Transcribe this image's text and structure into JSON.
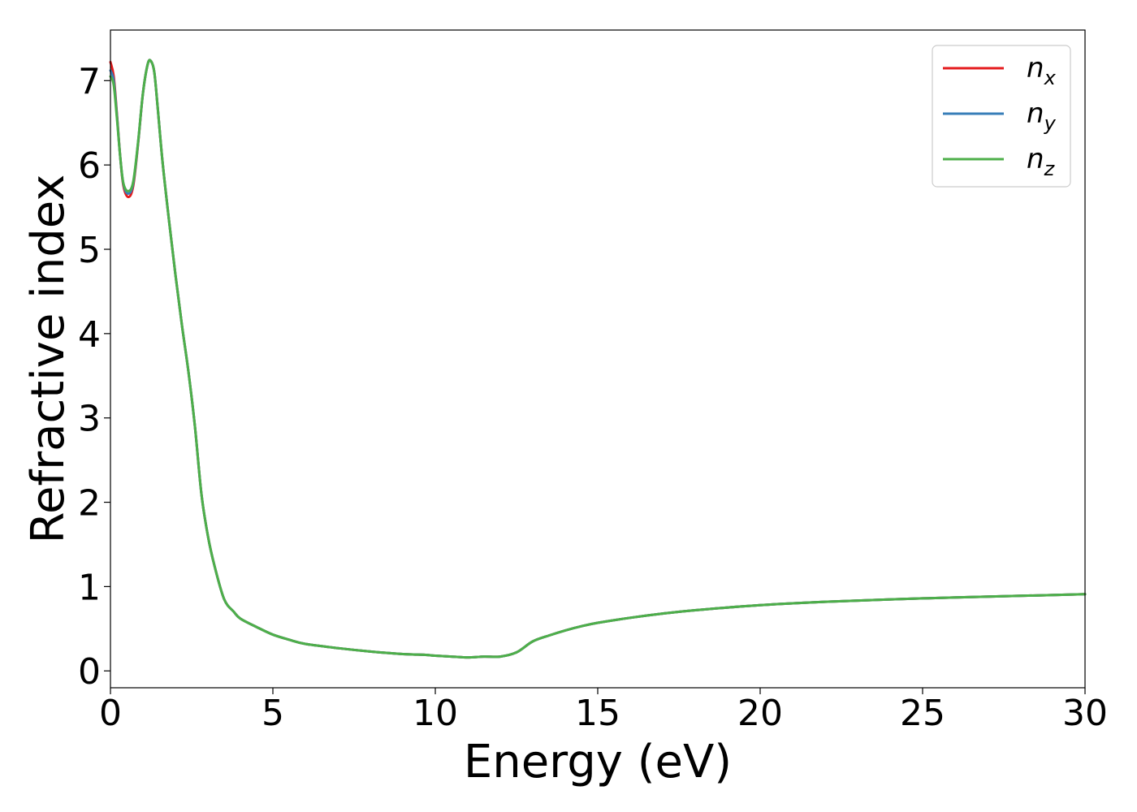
{
  "chart_data": {
    "type": "line",
    "xlabel": "Energy (eV)",
    "ylabel": "Refractive index",
    "xlim": [
      0,
      30
    ],
    "ylim": [
      -0.2,
      7.6
    ],
    "xticks": [
      "0",
      "5",
      "10",
      "15",
      "20",
      "25",
      "30"
    ],
    "yticks": [
      "0",
      "1",
      "2",
      "3",
      "4",
      "5",
      "6",
      "7"
    ],
    "grid": false,
    "legend_position": "top-right",
    "series": [
      {
        "base": "n",
        "sub": "x",
        "color": "#e41a1c",
        "x": [
          0,
          0.1,
          0.2,
          0.3,
          0.4,
          0.55,
          0.7,
          0.85,
          1.0,
          1.15,
          1.25,
          1.35,
          1.45,
          1.6,
          1.8,
          2.0,
          2.2,
          2.4,
          2.6,
          2.8,
          3.0,
          3.2,
          3.5,
          3.8,
          4.0,
          4.5,
          5.0,
          5.5,
          6.0,
          7.0,
          8.0,
          9.0,
          9.7,
          10.0,
          10.5,
          11.0,
          11.5,
          12.0,
          12.5,
          13.0,
          13.5,
          14.0,
          14.5,
          15.0,
          16.0,
          17.0,
          18.0,
          20.0,
          22.0,
          25.0,
          28.0,
          30.0
        ],
        "y": [
          7.22,
          7.05,
          6.6,
          6.1,
          5.75,
          5.62,
          5.75,
          6.25,
          6.85,
          7.2,
          7.23,
          7.1,
          6.7,
          6.05,
          5.35,
          4.7,
          4.1,
          3.55,
          2.9,
          2.1,
          1.6,
          1.25,
          0.85,
          0.7,
          0.62,
          0.52,
          0.43,
          0.37,
          0.32,
          0.27,
          0.23,
          0.2,
          0.19,
          0.18,
          0.17,
          0.16,
          0.17,
          0.17,
          0.22,
          0.35,
          0.42,
          0.48,
          0.53,
          0.57,
          0.63,
          0.68,
          0.72,
          0.78,
          0.82,
          0.86,
          0.89,
          0.91
        ]
      },
      {
        "base": "n",
        "sub": "y",
        "color": "#377eb8",
        "x": [
          0,
          0.1,
          0.2,
          0.3,
          0.4,
          0.55,
          0.7,
          0.85,
          1.0,
          1.15,
          1.25,
          1.35,
          1.45,
          1.6,
          1.8,
          2.0,
          2.2,
          2.4,
          2.6,
          2.8,
          3.0,
          3.2,
          3.5,
          3.8,
          4.0,
          4.5,
          5.0,
          5.5,
          6.0,
          7.0,
          8.0,
          9.0,
          9.7,
          10.0,
          10.5,
          11.0,
          11.5,
          12.0,
          12.5,
          13.0,
          13.5,
          14.0,
          14.5,
          15.0,
          16.0,
          17.0,
          18.0,
          20.0,
          22.0,
          25.0,
          28.0,
          30.0
        ],
        "y": [
          7.12,
          7.0,
          6.58,
          6.1,
          5.77,
          5.66,
          5.78,
          6.26,
          6.85,
          7.2,
          7.23,
          7.1,
          6.7,
          6.05,
          5.35,
          4.7,
          4.1,
          3.55,
          2.9,
          2.1,
          1.6,
          1.25,
          0.85,
          0.7,
          0.62,
          0.52,
          0.43,
          0.37,
          0.32,
          0.27,
          0.23,
          0.2,
          0.19,
          0.18,
          0.17,
          0.16,
          0.17,
          0.17,
          0.22,
          0.35,
          0.42,
          0.48,
          0.53,
          0.57,
          0.63,
          0.68,
          0.72,
          0.78,
          0.82,
          0.86,
          0.89,
          0.91
        ]
      },
      {
        "base": "n",
        "sub": "z",
        "color": "#4daf4a",
        "x": [
          0,
          0.1,
          0.2,
          0.3,
          0.4,
          0.55,
          0.7,
          0.85,
          1.0,
          1.15,
          1.25,
          1.35,
          1.45,
          1.6,
          1.8,
          2.0,
          2.2,
          2.4,
          2.6,
          2.8,
          3.0,
          3.2,
          3.5,
          3.8,
          4.0,
          4.5,
          5.0,
          5.5,
          6.0,
          7.0,
          8.0,
          9.0,
          9.7,
          10.0,
          10.5,
          11.0,
          11.5,
          12.0,
          12.5,
          13.0,
          13.5,
          14.0,
          14.5,
          15.0,
          16.0,
          17.0,
          18.0,
          20.0,
          22.0,
          25.0,
          28.0,
          30.0
        ],
        "y": [
          7.05,
          6.95,
          6.55,
          6.1,
          5.78,
          5.69,
          5.8,
          6.27,
          6.85,
          7.2,
          7.23,
          7.1,
          6.7,
          6.05,
          5.35,
          4.7,
          4.1,
          3.55,
          2.9,
          2.1,
          1.6,
          1.25,
          0.85,
          0.7,
          0.62,
          0.52,
          0.43,
          0.37,
          0.32,
          0.27,
          0.23,
          0.2,
          0.19,
          0.18,
          0.17,
          0.16,
          0.17,
          0.17,
          0.22,
          0.35,
          0.42,
          0.48,
          0.53,
          0.57,
          0.63,
          0.68,
          0.72,
          0.78,
          0.82,
          0.86,
          0.89,
          0.91
        ]
      }
    ]
  }
}
